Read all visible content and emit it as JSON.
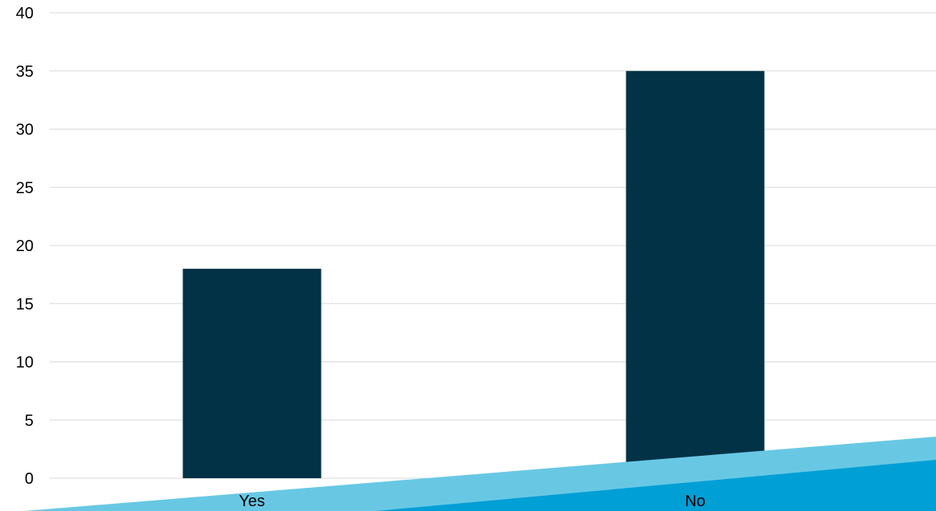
{
  "colors": {
    "bar": "#023246",
    "grid": "#d9d9d9",
    "wedge_light": "#68c8e4",
    "wedge_dark": "#009fd6",
    "background": "#ffffff"
  },
  "chart_data": {
    "type": "bar",
    "categories": [
      "Yes",
      "No"
    ],
    "values": [
      18,
      35
    ],
    "title": "",
    "xlabel": "",
    "ylabel": "",
    "ylim": [
      0,
      40
    ],
    "yticks": [
      0,
      5,
      10,
      15,
      20,
      25,
      30,
      35,
      40
    ],
    "grid": true,
    "legend": "none"
  }
}
